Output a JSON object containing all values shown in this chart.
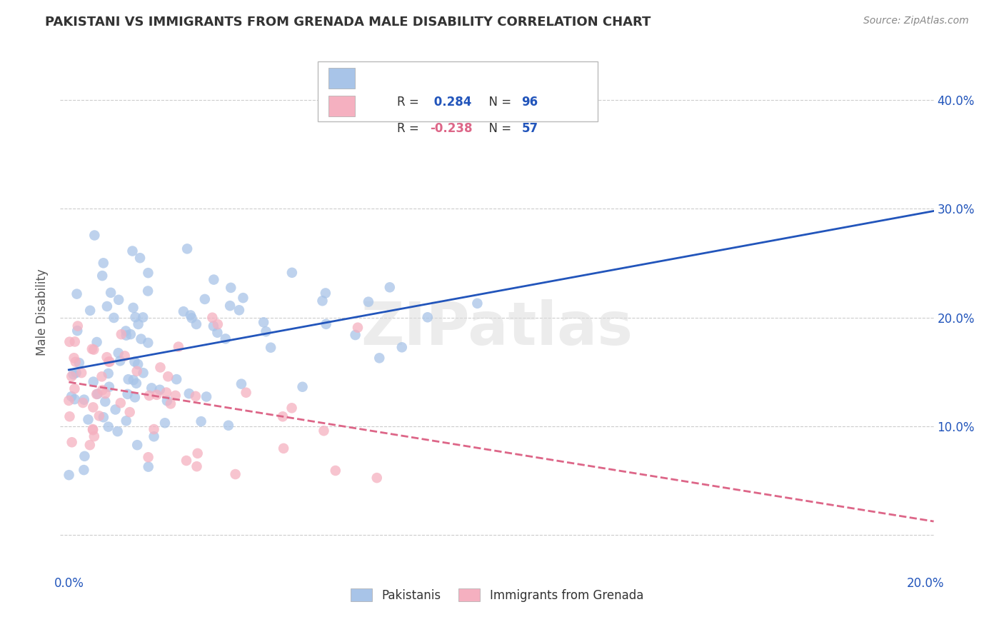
{
  "title": "PAKISTANI VS IMMIGRANTS FROM GRENADA MALE DISABILITY CORRELATION CHART",
  "source": "Source: ZipAtlas.com",
  "ylabel": "Male Disability",
  "xlim": [
    -0.002,
    0.202
  ],
  "ylim": [
    -0.035,
    0.445
  ],
  "ytick_pos": [
    0.0,
    0.1,
    0.2,
    0.3,
    0.4
  ],
  "xtick_pos": [
    0.0,
    0.05,
    0.1,
    0.15,
    0.2
  ],
  "right_ytick_labels": [
    "",
    "10.0%",
    "20.0%",
    "30.0%",
    "40.0%"
  ],
  "bottom_xtick_labels": [
    "0.0%",
    "",
    "",
    "",
    "20.0%"
  ],
  "pakistani_R": 0.284,
  "pakistani_N": 96,
  "grenada_R": -0.238,
  "grenada_N": 57,
  "pakistani_color": "#a8c4e8",
  "grenada_color": "#f5b0c0",
  "pakistani_line_color": "#2255bb",
  "grenada_line_color": "#dd6688",
  "watermark": "ZIPatlas",
  "legend_R_color": "#2255bb",
  "legend_N_color": "#2255bb",
  "legend_Rneg_color": "#dd6688",
  "title_color": "#333333",
  "source_color": "#888888",
  "grid_color": "#cccccc",
  "tick_label_color": "#2255bb"
}
